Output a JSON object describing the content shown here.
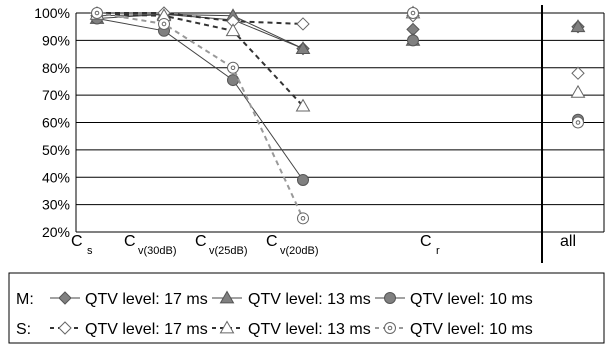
{
  "chart_data": {
    "type": "line",
    "yticks": [
      "100%",
      "90%",
      "80%",
      "70%",
      "60%",
      "50%",
      "40%",
      "30%",
      "20%"
    ],
    "ylim": [
      20,
      100
    ],
    "grid": true,
    "categories": [
      {
        "main": "C",
        "sub": "s"
      },
      {
        "main": "C",
        "sub": "v(30dB)"
      },
      {
        "main": "C",
        "sub": "v(25dB)"
      },
      {
        "main": "C",
        "sub": "v(20dB)"
      },
      {
        "main": "C",
        "sub": "r"
      },
      {
        "main": "all",
        "sub": ""
      }
    ],
    "legend": {
      "placement": "bottom",
      "rows": [
        {
          "prefix": "M:",
          "items": [
            "QTV level: 17 ms",
            "QTV level: 13 ms",
            "QTV level: 10 ms"
          ]
        },
        {
          "prefix": "S:",
          "items": [
            "QTV level: 17 ms",
            "QTV level: 13 ms",
            "QTV level: 10 ms"
          ]
        }
      ]
    },
    "series": [
      {
        "group": "M",
        "marker": "diamond",
        "filled": true,
        "dashed": false,
        "line": [
          99,
          99.5,
          97.5,
          87
        ],
        "r": 94,
        "all": 95
      },
      {
        "group": "M",
        "marker": "triangle",
        "filled": true,
        "dashed": false,
        "line": [
          98,
          99.5,
          99,
          87
        ],
        "r": 90,
        "all": 95
      },
      {
        "group": "M",
        "marker": "circle",
        "filled": true,
        "dashed": false,
        "line": [
          98,
          93.5,
          75.5,
          39
        ],
        "r": 90,
        "all": 61
      },
      {
        "group": "S",
        "marker": "diamond",
        "filled": false,
        "dashed": true,
        "line": [
          100,
          100,
          97,
          96
        ],
        "r": 99,
        "all": 78
      },
      {
        "group": "S",
        "marker": "triangle",
        "filled": false,
        "dashed": true,
        "line": [
          99.5,
          99,
          93.5,
          66
        ],
        "r": 100,
        "all": 71
      },
      {
        "group": "S",
        "marker": "circle",
        "filled": false,
        "dashed": true,
        "line": [
          100,
          96,
          80,
          25
        ],
        "r": 100,
        "all": 60
      }
    ]
  }
}
